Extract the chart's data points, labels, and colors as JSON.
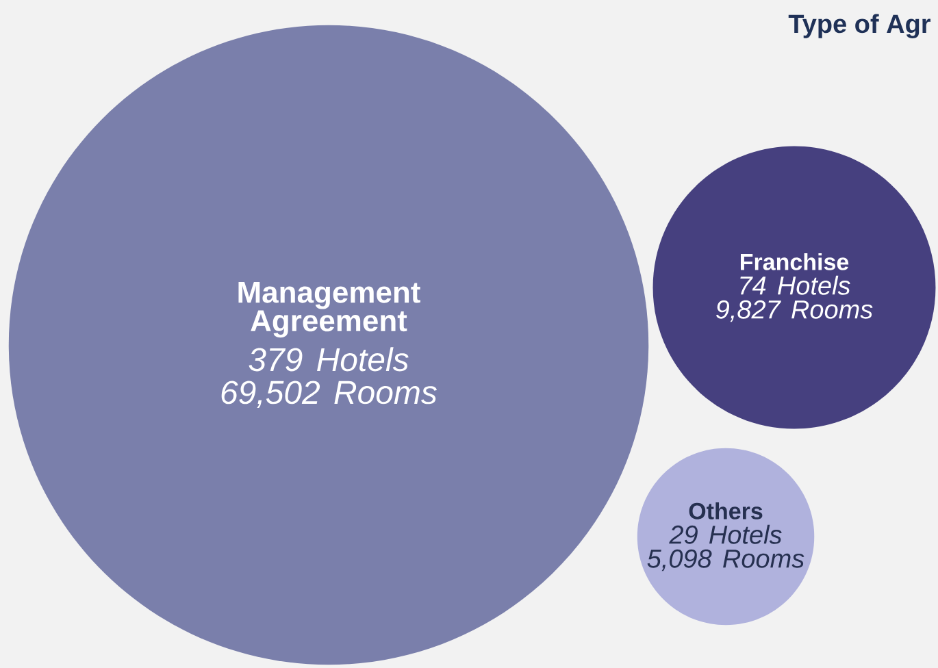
{
  "chart_data": {
    "type": "other",
    "title": "Type of Agr",
    "categories": [
      "Management Agreement",
      "Franchise",
      "Others"
    ],
    "series": [
      {
        "colors": [
          "#7a7fab",
          "#46407f",
          "#b0b2dd"
        ],
        "values": [
          379,
          74,
          29
        ],
        "value_labels": [
          "379 Hotels",
          "74 Hotels",
          "29 Hotels"
        ]
      },
      {
        "values": [
          69502,
          9827,
          5098
        ],
        "value_labels": [
          "69,502 Rooms",
          "9,827 Rooms",
          "5,098 Rooms"
        ]
      }
    ]
  }
}
